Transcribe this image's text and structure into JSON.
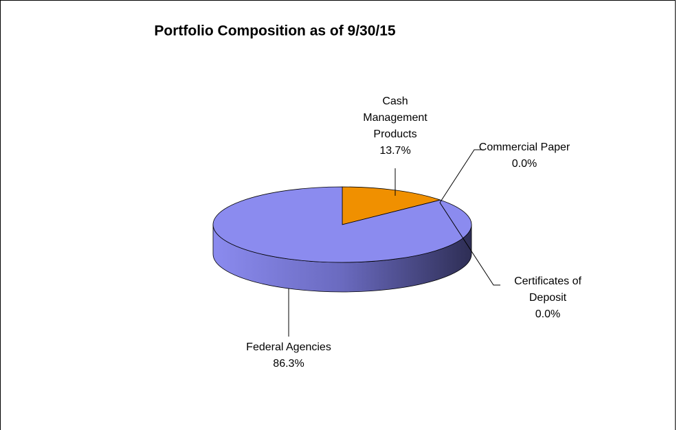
{
  "chart_data": {
    "type": "pie3d",
    "title": "Portfolio Composition as of 9/30/15",
    "categories": [
      "Cash Management Products",
      "Commercial Paper",
      "Certificates of Deposit",
      "Federal Agencies"
    ],
    "values": [
      13.7,
      0.0,
      0.0,
      86.3
    ],
    "value_labels": [
      "13.7%",
      "0.0%",
      "0.0%",
      "86.3%"
    ],
    "colors": [
      "#f09000",
      "#993366",
      "#ffffcc",
      "#8b8bef"
    ]
  }
}
